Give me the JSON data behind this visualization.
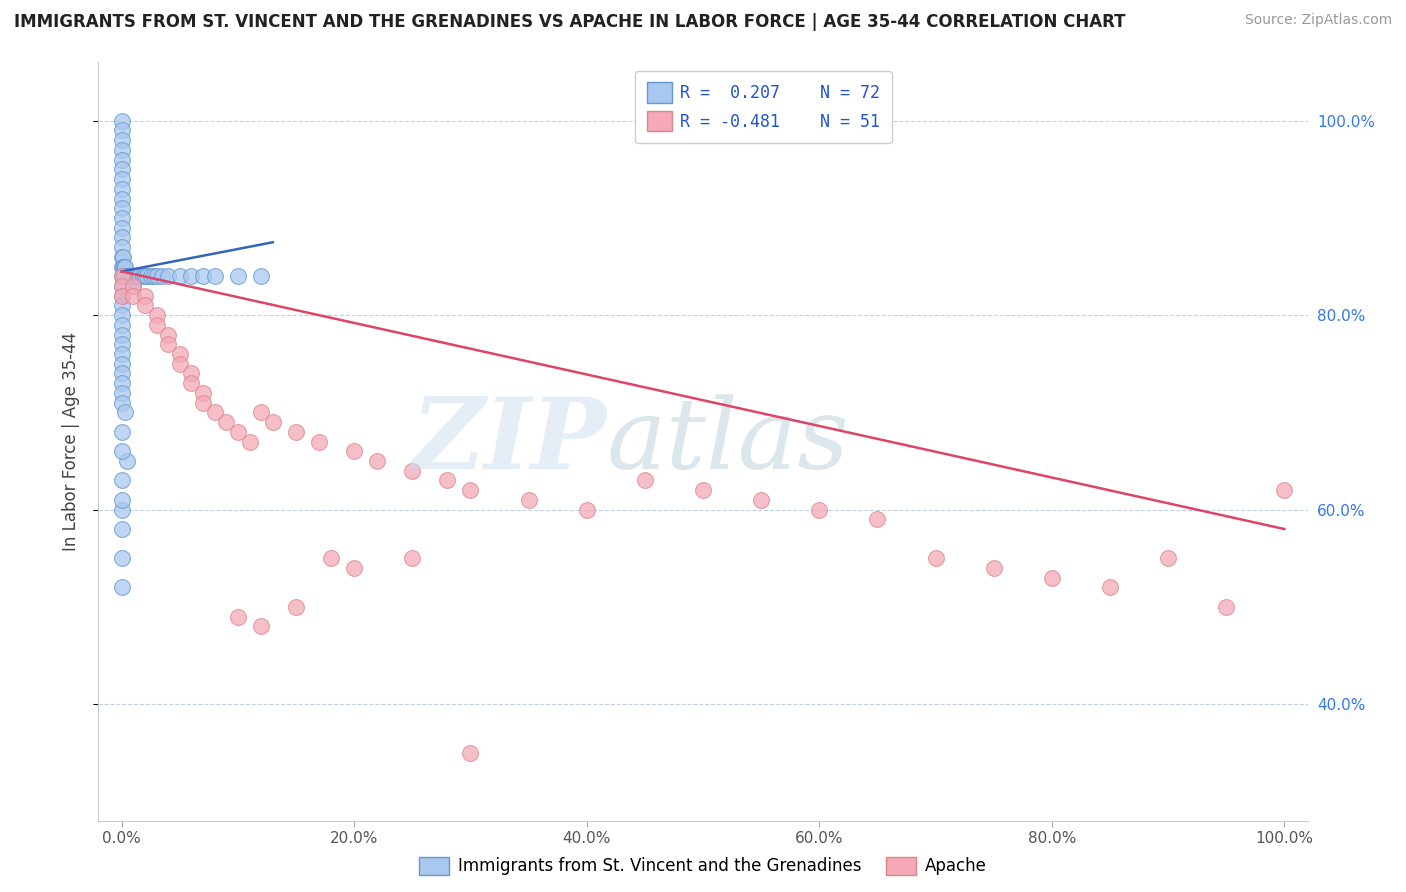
{
  "title": "IMMIGRANTS FROM ST. VINCENT AND THE GRENADINES VS APACHE IN LABOR FORCE | AGE 35-44 CORRELATION CHART",
  "source": "Source: ZipAtlas.com",
  "ylabel": "In Labor Force | Age 35-44",
  "xlim": [
    -0.02,
    1.02
  ],
  "ylim": [
    0.28,
    1.06
  ],
  "x_ticks": [
    0.0,
    0.2,
    0.4,
    0.6,
    0.8,
    1.0
  ],
  "x_tick_labels": [
    "0.0%",
    "20.0%",
    "40.0%",
    "60.0%",
    "80.0%",
    "100.0%"
  ],
  "y_ticks": [
    0.4,
    0.6,
    0.8,
    1.0
  ],
  "y_tick_labels": [
    "40.0%",
    "60.0%",
    "80.0%",
    "100.0%"
  ],
  "blue_R": 0.207,
  "blue_N": 72,
  "pink_R": -0.481,
  "pink_N": 51,
  "blue_color": "#A8C8F0",
  "pink_color": "#F4A8B8",
  "blue_edge": "#6699CC",
  "pink_edge": "#DD8888",
  "trendline_blue": "#3366BB",
  "trendline_pink": "#DD4466",
  "grid_color": "#BBCCDD",
  "blue_label": "Immigrants from St. Vincent and the Grenadines",
  "pink_label": "Apache",
  "blue_scatter_x": [
    0.0,
    0.0,
    0.0,
    0.0,
    0.0,
    0.0,
    0.0,
    0.0,
    0.0,
    0.0,
    0.0,
    0.0,
    0.0,
    0.0,
    0.0,
    0.0,
    0.0,
    0.0,
    0.0,
    0.0,
    0.0,
    0.0,
    0.0,
    0.0,
    0.0,
    0.0,
    0.0,
    0.0,
    0.0,
    0.0,
    0.001,
    0.001,
    0.001,
    0.002,
    0.002,
    0.003,
    0.003,
    0.004,
    0.005,
    0.006,
    0.007,
    0.008,
    0.01,
    0.01,
    0.012,
    0.015,
    0.018,
    0.02,
    0.022,
    0.025,
    0.028,
    0.03,
    0.035,
    0.04,
    0.05,
    0.06,
    0.07,
    0.08,
    0.1,
    0.12,
    0.003,
    0.005,
    0.001,
    0.002,
    0.0,
    0.0,
    0.0,
    0.0,
    0.0,
    0.0,
    0.0,
    0.0
  ],
  "blue_scatter_y": [
    1.0,
    0.99,
    0.98,
    0.97,
    0.96,
    0.95,
    0.94,
    0.93,
    0.92,
    0.91,
    0.9,
    0.89,
    0.88,
    0.87,
    0.86,
    0.85,
    0.84,
    0.83,
    0.82,
    0.81,
    0.8,
    0.79,
    0.78,
    0.77,
    0.76,
    0.75,
    0.74,
    0.73,
    0.72,
    0.71,
    0.86,
    0.85,
    0.84,
    0.85,
    0.84,
    0.85,
    0.84,
    0.84,
    0.84,
    0.84,
    0.84,
    0.84,
    0.84,
    0.83,
    0.84,
    0.84,
    0.84,
    0.84,
    0.84,
    0.84,
    0.84,
    0.84,
    0.84,
    0.84,
    0.84,
    0.84,
    0.84,
    0.84,
    0.84,
    0.84,
    0.7,
    0.65,
    0.84,
    0.84,
    0.6,
    0.58,
    0.55,
    0.52,
    0.68,
    0.66,
    0.63,
    0.61
  ],
  "pink_scatter_x": [
    0.0,
    0.0,
    0.0,
    0.01,
    0.01,
    0.02,
    0.02,
    0.03,
    0.03,
    0.04,
    0.04,
    0.05,
    0.05,
    0.06,
    0.06,
    0.07,
    0.07,
    0.08,
    0.09,
    0.1,
    0.11,
    0.12,
    0.13,
    0.15,
    0.17,
    0.2,
    0.22,
    0.25,
    0.28,
    0.3,
    0.35,
    0.4,
    0.45,
    0.5,
    0.55,
    0.6,
    0.65,
    0.7,
    0.75,
    0.8,
    0.85,
    0.9,
    0.95,
    1.0,
    0.1,
    0.12,
    0.15,
    0.18,
    0.2,
    0.25,
    0.3
  ],
  "pink_scatter_y": [
    0.84,
    0.83,
    0.82,
    0.83,
    0.82,
    0.82,
    0.81,
    0.8,
    0.79,
    0.78,
    0.77,
    0.76,
    0.75,
    0.74,
    0.73,
    0.72,
    0.71,
    0.7,
    0.69,
    0.68,
    0.67,
    0.7,
    0.69,
    0.68,
    0.67,
    0.66,
    0.65,
    0.64,
    0.63,
    0.62,
    0.61,
    0.6,
    0.63,
    0.62,
    0.61,
    0.6,
    0.59,
    0.55,
    0.54,
    0.53,
    0.52,
    0.55,
    0.5,
    0.62,
    0.49,
    0.48,
    0.5,
    0.55,
    0.54,
    0.55,
    0.35
  ],
  "blue_trend_x": [
    0.0,
    0.13
  ],
  "blue_trend_y": [
    0.845,
    0.875
  ],
  "pink_trend_x": [
    0.0,
    1.0
  ],
  "pink_trend_y": [
    0.845,
    0.58
  ]
}
